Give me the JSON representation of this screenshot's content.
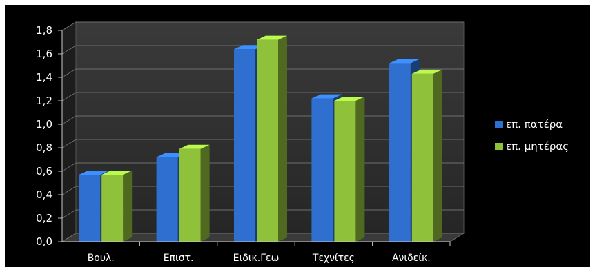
{
  "chart_data": {
    "type": "bar",
    "style": "3d-clustered-column",
    "categories": [
      "Βουλ.",
      "Επιστ.",
      "Ειδικ.Γεω",
      "Τεχνίτες",
      "Ανιδείκ."
    ],
    "series": [
      {
        "name": "επ. πατέρα",
        "values": [
          0.57,
          0.72,
          1.64,
          1.22,
          1.52
        ],
        "color": "#2f6fcf"
      },
      {
        "name": "επ. μητέρας",
        "values": [
          0.57,
          0.79,
          1.72,
          1.2,
          1.43
        ],
        "color": "#8fc13a"
      }
    ],
    "ylim": [
      0,
      1.8
    ],
    "yticks": [
      "0,0",
      "0,2",
      "0,4",
      "0,6",
      "0,8",
      "1,0",
      "1,2",
      "1,4",
      "1,6",
      "1,8"
    ],
    "grid": true,
    "legend": "right",
    "background": "#000000",
    "plot_wall_color": "#2e2e2e"
  }
}
